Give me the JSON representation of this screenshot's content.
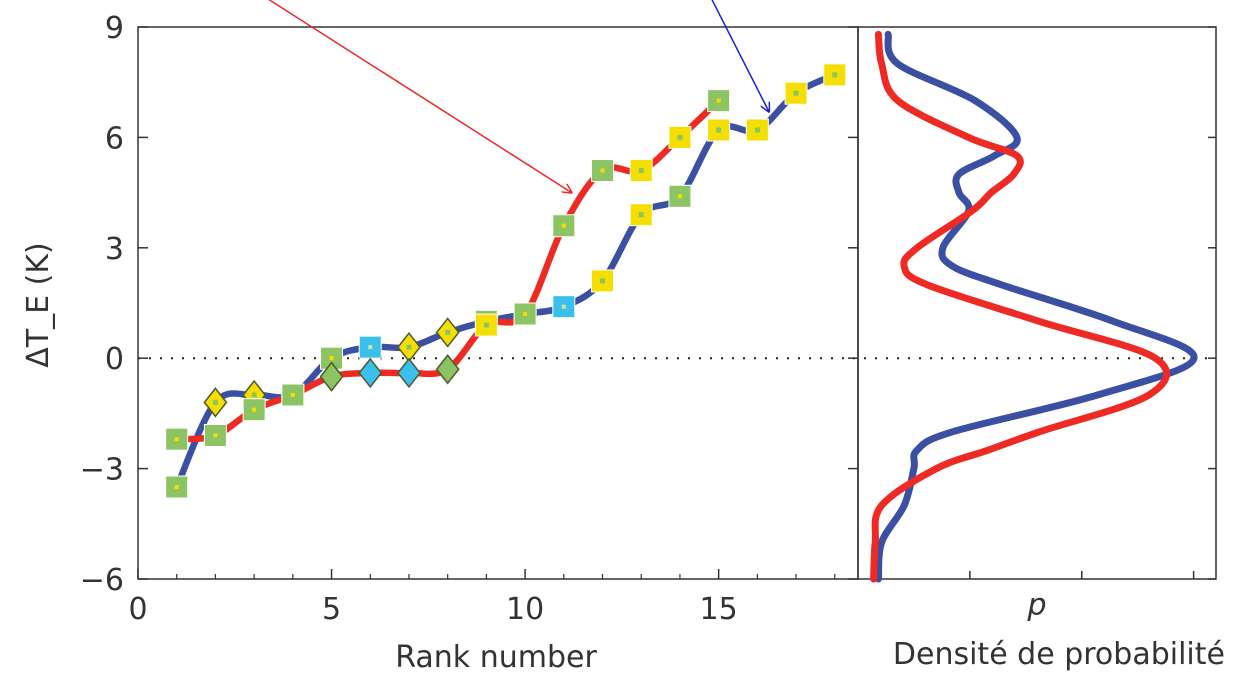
{
  "chart_data": [
    {
      "type": "line",
      "xlabel": "Rank number",
      "ylabel": "ΔT_E (K)",
      "xlim": [
        0,
        18.6
      ],
      "ylim": [
        -6,
        9
      ],
      "xticks": [
        0,
        5,
        10,
        15
      ],
      "yticks": [
        -6,
        -3,
        0,
        3,
        6,
        9
      ],
      "xtick_labels": [
        "0",
        "5",
        "10",
        "15"
      ],
      "ytick_labels": [
        "−6",
        "−3",
        "0",
        "3",
        "6",
        "9"
      ],
      "zero_reference_line": "dotted",
      "grid": false,
      "colors": {
        "red_series": "#ee2a24",
        "blue_series": "#3b4fa3",
        "green_marker": "#8cc464",
        "yellow_marker": "#f5df00",
        "cyan_marker": "#3bbfec",
        "arrow_red": "#ee2a24",
        "arrow_blue": "#1f1fd6"
      },
      "series": [
        {
          "color": "#ee2a24",
          "points": [
            {
              "x": 1,
              "y": -2.2,
              "marker": "square",
              "fill": "green"
            },
            {
              "x": 2,
              "y": -2.1,
              "marker": "square",
              "fill": "green"
            },
            {
              "x": 3,
              "y": -1.4,
              "marker": "square",
              "fill": "green"
            },
            {
              "x": 4,
              "y": -1.0,
              "marker": "square",
              "fill": "green"
            },
            {
              "x": 5,
              "y": -0.5,
              "marker": "diamond",
              "fill": "green"
            },
            {
              "x": 6,
              "y": -0.4,
              "marker": "diamond",
              "fill": "cyan"
            },
            {
              "x": 7,
              "y": -0.4,
              "marker": "diamond",
              "fill": "cyan"
            },
            {
              "x": 8,
              "y": -0.3,
              "marker": "diamond",
              "fill": "green"
            },
            {
              "x": 9,
              "y": 0.9,
              "marker": "square",
              "fill": "yellow"
            },
            {
              "x": 10,
              "y": 1.2,
              "marker": "square",
              "fill": "green"
            },
            {
              "x": 11,
              "y": 3.6,
              "marker": "square",
              "fill": "green"
            },
            {
              "x": 12,
              "y": 5.1,
              "marker": "square",
              "fill": "green"
            },
            {
              "x": 13,
              "y": 5.1,
              "marker": "square",
              "fill": "yellow"
            },
            {
              "x": 14,
              "y": 6.0,
              "marker": "square",
              "fill": "yellow"
            },
            {
              "x": 15,
              "y": 7.0,
              "marker": "square",
              "fill": "green"
            }
          ]
        },
        {
          "color": "#3b4fa3",
          "points": [
            {
              "x": 1,
              "y": -3.5,
              "marker": "square",
              "fill": "green"
            },
            {
              "x": 2,
              "y": -1.2,
              "marker": "diamond",
              "fill": "yellow"
            },
            {
              "x": 3,
              "y": -1.0,
              "marker": "diamond",
              "fill": "yellow"
            },
            {
              "x": 4,
              "y": -1.0,
              "marker": "square",
              "fill": "green"
            },
            {
              "x": 5,
              "y": 0.0,
              "marker": "square",
              "fill": "green"
            },
            {
              "x": 6,
              "y": 0.3,
              "marker": "square",
              "fill": "cyan"
            },
            {
              "x": 7,
              "y": 0.3,
              "marker": "diamond",
              "fill": "yellow"
            },
            {
              "x": 8,
              "y": 0.7,
              "marker": "diamond",
              "fill": "yellow"
            },
            {
              "x": 9,
              "y": 1.0,
              "marker": "square",
              "fill": "green"
            },
            {
              "x": 10,
              "y": 1.2,
              "marker": "square",
              "fill": "cyan"
            },
            {
              "x": 11,
              "y": 1.4,
              "marker": "square",
              "fill": "cyan"
            },
            {
              "x": 12,
              "y": 2.1,
              "marker": "square",
              "fill": "yellow"
            },
            {
              "x": 13,
              "y": 3.9,
              "marker": "square",
              "fill": "yellow"
            },
            {
              "x": 14,
              "y": 4.4,
              "marker": "square",
              "fill": "green"
            },
            {
              "x": 15,
              "y": 6.2,
              "marker": "square",
              "fill": "yellow"
            },
            {
              "x": 16,
              "y": 6.2,
              "marker": "square",
              "fill": "yellow"
            },
            {
              "x": 17,
              "y": 7.2,
              "marker": "square",
              "fill": "yellow"
            },
            {
              "x": 18,
              "y": 7.7,
              "marker": "square",
              "fill": "yellow"
            }
          ]
        }
      ],
      "annotations": [
        {
          "type": "arrow",
          "color": "#ee2a24",
          "from": {
            "x": 3.3,
            "y": 9.8
          },
          "to": {
            "x": 11.2,
            "y": 4.5
          }
        },
        {
          "type": "arrow",
          "color": "#1f1fd6",
          "from": {
            "x": 14.8,
            "y": 9.8
          },
          "to": {
            "x": 16.3,
            "y": 6.7
          }
        }
      ]
    },
    {
      "type": "line",
      "xlabel": "p",
      "caption": "Densité de probabilité",
      "ylim": [
        -6,
        9
      ],
      "x_tick_count": 3,
      "y_samples": [
        -6.0,
        -5.0,
        -4.0,
        -3.0,
        -2.5,
        -2.0,
        -1.0,
        0.0,
        1.0,
        2.0,
        2.5,
        3.0,
        4.0,
        4.5,
        5.0,
        5.5,
        6.0,
        7.0,
        8.0,
        8.8
      ],
      "series": [
        {
          "color": "#3b4fa3",
          "density": [
            0.02,
            0.03,
            0.1,
            0.13,
            0.14,
            0.25,
            0.7,
            1.0,
            0.75,
            0.4,
            0.25,
            0.22,
            0.3,
            0.27,
            0.27,
            0.38,
            0.45,
            0.32,
            0.08,
            0.05
          ]
        },
        {
          "color": "#ee2a24",
          "density": [
            0.005,
            0.01,
            0.03,
            0.2,
            0.36,
            0.52,
            0.86,
            0.88,
            0.52,
            0.17,
            0.1,
            0.14,
            0.31,
            0.37,
            0.44,
            0.45,
            0.3,
            0.08,
            0.03,
            0.02
          ]
        }
      ]
    }
  ]
}
